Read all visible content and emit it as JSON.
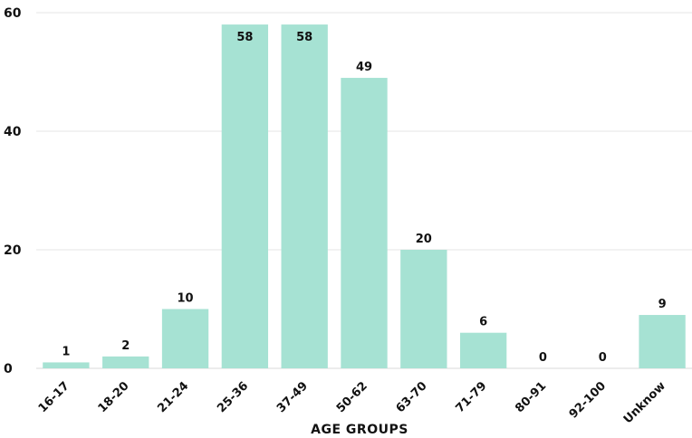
{
  "chart_data": {
    "type": "bar",
    "title": "",
    "xlabel": "AGE GROUPS",
    "ylabel": "",
    "categories": [
      "16-17",
      "18-20",
      "21-24",
      "25-36",
      "37-49",
      "50-62",
      "63-70",
      "71-79",
      "80-91",
      "92-100",
      "Unknow"
    ],
    "values": [
      1,
      2,
      10,
      58,
      58,
      49,
      20,
      6,
      0,
      0,
      9
    ],
    "ylim": [
      0,
      60
    ],
    "yticks": [
      0,
      20,
      40,
      60
    ],
    "grid": true,
    "legend": "none",
    "bar_color": "#a6e2d3",
    "data_labels": true
  }
}
